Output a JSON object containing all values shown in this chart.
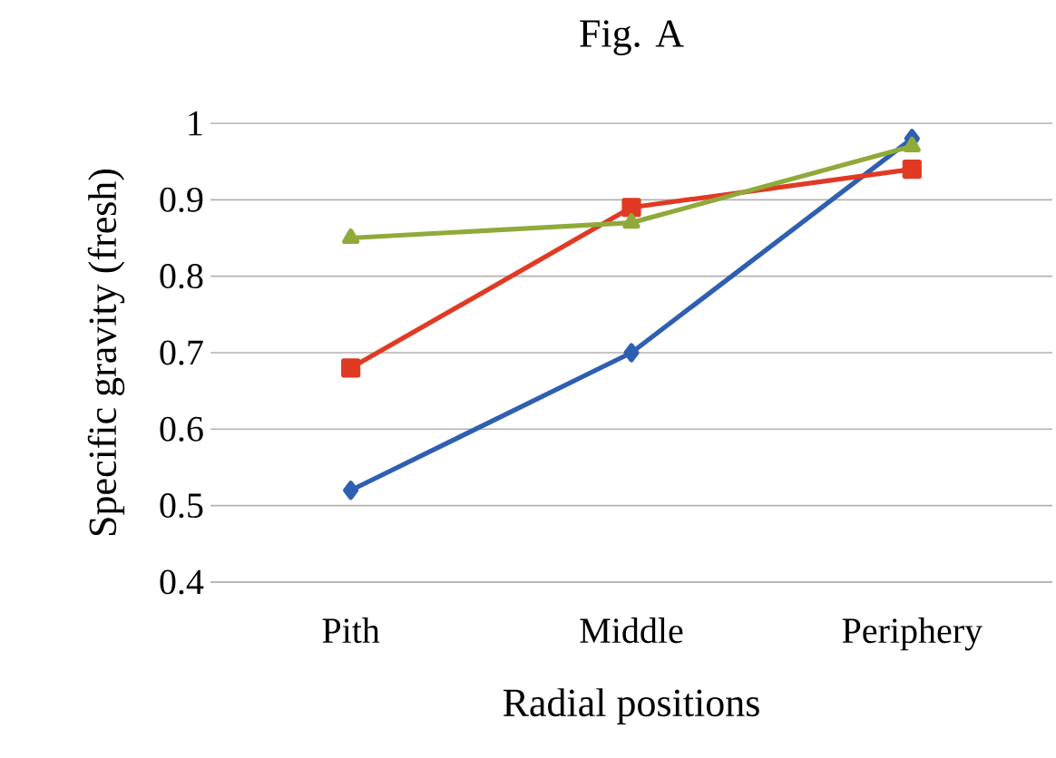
{
  "chart_data": {
    "type": "line",
    "title": "Fig. A",
    "xlabel": "Radial positions",
    "ylabel": "Specific gravity (fresh)",
    "categories": [
      "Pith",
      "Middle",
      "Periphery"
    ],
    "series": [
      {
        "color": "#2e5fb0",
        "values": [
          0.52,
          0.7,
          0.98
        ],
        "marker": "diamond"
      },
      {
        "color": "#e03a24",
        "values": [
          0.68,
          0.89,
          0.94
        ],
        "marker": "square"
      },
      {
        "color": "#8faa3a",
        "values": [
          0.85,
          0.87,
          0.97
        ],
        "marker": "triangle"
      }
    ],
    "ylim": [
      0.4,
      1
    ],
    "yticks": [
      0.4,
      0.5,
      0.6,
      0.7,
      0.8,
      0.9,
      1
    ],
    "grid": "y",
    "line_style": "solid"
  }
}
